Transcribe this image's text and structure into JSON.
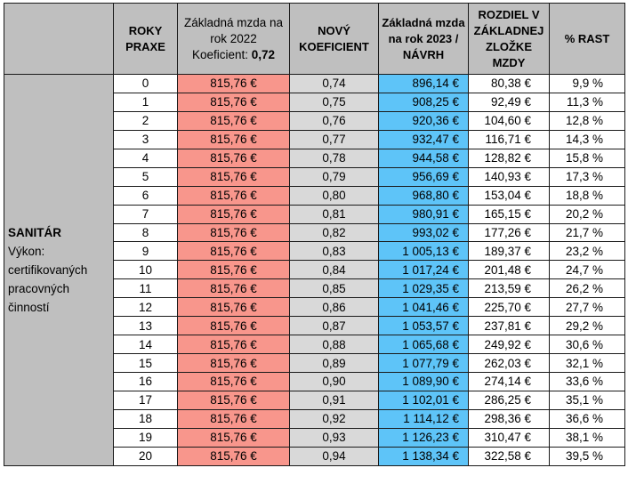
{
  "header": {
    "years": "ROKY PRAXE",
    "base_line1": "Základná mzda na rok 2022",
    "base_coef_label": "Koeficient: ",
    "base_coef_value": "0,72",
    "new_coef": "NOVÝ KOEFICIENT",
    "new_wage": "Základná mzda na rok 2023 / NÁVRH",
    "diff": "ROZDIEL V ZÁKLADNEJ ZLOŽKE MZDY",
    "pct": "% RAST"
  },
  "category": {
    "title": "SANITÁR",
    "description": "Výkon: certifikovaných pracovných činností"
  },
  "rows": [
    {
      "years": "0",
      "base": "815,76 €",
      "coef": "0,74",
      "new": "896,14 €",
      "diff": "80,38 €",
      "pct": "9,9 %"
    },
    {
      "years": "1",
      "base": "815,76 €",
      "coef": "0,75",
      "new": "908,25 €",
      "diff": "92,49 €",
      "pct": "11,3 %"
    },
    {
      "years": "2",
      "base": "815,76 €",
      "coef": "0,76",
      "new": "920,36 €",
      "diff": "104,60 €",
      "pct": "12,8 %"
    },
    {
      "years": "3",
      "base": "815,76 €",
      "coef": "0,77",
      "new": "932,47 €",
      "diff": "116,71 €",
      "pct": "14,3 %"
    },
    {
      "years": "4",
      "base": "815,76 €",
      "coef": "0,78",
      "new": "944,58 €",
      "diff": "128,82 €",
      "pct": "15,8 %"
    },
    {
      "years": "5",
      "base": "815,76 €",
      "coef": "0,79",
      "new": "956,69 €",
      "diff": "140,93 €",
      "pct": "17,3 %"
    },
    {
      "years": "6",
      "base": "815,76 €",
      "coef": "0,80",
      "new": "968,80 €",
      "diff": "153,04 €",
      "pct": "18,8 %"
    },
    {
      "years": "7",
      "base": "815,76 €",
      "coef": "0,81",
      "new": "980,91 €",
      "diff": "165,15 €",
      "pct": "20,2 %"
    },
    {
      "years": "8",
      "base": "815,76 €",
      "coef": "0,82",
      "new": "993,02 €",
      "diff": "177,26 €",
      "pct": "21,7 %"
    },
    {
      "years": "9",
      "base": "815,76 €",
      "coef": "0,83",
      "new": "1 005,13 €",
      "diff": "189,37 €",
      "pct": "23,2 %"
    },
    {
      "years": "10",
      "base": "815,76 €",
      "coef": "0,84",
      "new": "1 017,24 €",
      "diff": "201,48 €",
      "pct": "24,7 %"
    },
    {
      "years": "11",
      "base": "815,76 €",
      "coef": "0,85",
      "new": "1 029,35 €",
      "diff": "213,59 €",
      "pct": "26,2 %"
    },
    {
      "years": "12",
      "base": "815,76 €",
      "coef": "0,86",
      "new": "1 041,46 €",
      "diff": "225,70 €",
      "pct": "27,7 %"
    },
    {
      "years": "13",
      "base": "815,76 €",
      "coef": "0,87",
      "new": "1 053,57 €",
      "diff": "237,81 €",
      "pct": "29,2 %"
    },
    {
      "years": "14",
      "base": "815,76 €",
      "coef": "0,88",
      "new": "1 065,68 €",
      "diff": "249,92 €",
      "pct": "30,6 %"
    },
    {
      "years": "15",
      "base": "815,76 €",
      "coef": "0,89",
      "new": "1 077,79 €",
      "diff": "262,03 €",
      "pct": "32,1 %"
    },
    {
      "years": "16",
      "base": "815,76 €",
      "coef": "0,90",
      "new": "1 089,90 €",
      "diff": "274,14 €",
      "pct": "33,6 %"
    },
    {
      "years": "17",
      "base": "815,76 €",
      "coef": "0,91",
      "new": "1 102,01 €",
      "diff": "286,25 €",
      "pct": "35,1 %"
    },
    {
      "years": "18",
      "base": "815,76 €",
      "coef": "0,92",
      "new": "1 114,12 €",
      "diff": "298,36 €",
      "pct": "36,6 %"
    },
    {
      "years": "19",
      "base": "815,76 €",
      "coef": "0,93",
      "new": "1 126,23 €",
      "diff": "310,47 €",
      "pct": "38,1 %"
    },
    {
      "years": "20",
      "base": "815,76 €",
      "coef": "0,94",
      "new": "1 138,34 €",
      "diff": "322,58 €",
      "pct": "39,5 %"
    }
  ],
  "colors": {
    "header_gray": "#bfbfbf",
    "base_salary_red": "#f8968c",
    "coef_gray": "#d9d9d9",
    "new_salary_blue": "#5ec4f8"
  }
}
